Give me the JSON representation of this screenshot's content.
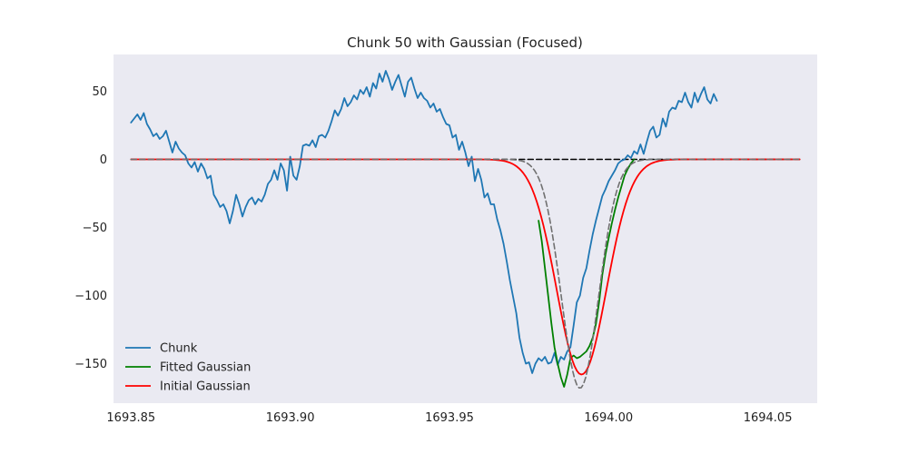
{
  "chart_data": {
    "type": "line",
    "title": "Chunk 50 with Gaussian (Focused)",
    "xlabel": "",
    "ylabel": "",
    "xlim": [
      1693.8445,
      1694.0655
    ],
    "ylim": [
      -179,
      77
    ],
    "x_ticks": [
      {
        "value": 1693.85,
        "label": "1693.85"
      },
      {
        "value": 1693.9,
        "label": "1693.90"
      },
      {
        "value": 1693.95,
        "label": "1693.95"
      },
      {
        "value": 1694.0,
        "label": "1694.00"
      },
      {
        "value": 1694.05,
        "label": "1694.05"
      }
    ],
    "y_ticks": [
      {
        "value": 50,
        "label": "50"
      },
      {
        "value": 0,
        "label": "0"
      },
      {
        "value": -50,
        "label": "−50"
      },
      {
        "value": -100,
        "label": "−100"
      },
      {
        "value": -150,
        "label": "−150"
      }
    ],
    "grid": false,
    "background": "#eaeaf2",
    "legend": {
      "position": "lower-left",
      "entries": [
        {
          "label": "Chunk",
          "color": "#1f77b4",
          "style": "solid"
        },
        {
          "label": "Fitted Gaussian",
          "color": "#008000",
          "style": "solid"
        },
        {
          "label": "Initial Gaussian",
          "color": "#ff0000",
          "style": "solid"
        }
      ]
    },
    "series": [
      {
        "name": "Chunk",
        "color": "#1f77b4",
        "style": "solid",
        "points": [
          [
            1693.85,
            27
          ],
          [
            1693.851,
            30
          ],
          [
            1693.852,
            33
          ],
          [
            1693.853,
            29
          ],
          [
            1693.854,
            34
          ],
          [
            1693.855,
            26
          ],
          [
            1693.856,
            22
          ],
          [
            1693.857,
            17
          ],
          [
            1693.858,
            19
          ],
          [
            1693.859,
            15
          ],
          [
            1693.86,
            17
          ],
          [
            1693.861,
            21
          ],
          [
            1693.862,
            13
          ],
          [
            1693.863,
            5
          ],
          [
            1693.864,
            13
          ],
          [
            1693.865,
            8
          ],
          [
            1693.866,
            5
          ],
          [
            1693.867,
            3
          ],
          [
            1693.868,
            -3
          ],
          [
            1693.869,
            -6
          ],
          [
            1693.87,
            -2
          ],
          [
            1693.871,
            -9
          ],
          [
            1693.872,
            -3
          ],
          [
            1693.873,
            -7
          ],
          [
            1693.874,
            -14
          ],
          [
            1693.875,
            -12
          ],
          [
            1693.876,
            -26
          ],
          [
            1693.877,
            -30
          ],
          [
            1693.878,
            -35
          ],
          [
            1693.879,
            -33
          ],
          [
            1693.88,
            -38
          ],
          [
            1693.881,
            -47
          ],
          [
            1693.882,
            -38
          ],
          [
            1693.883,
            -26
          ],
          [
            1693.884,
            -33
          ],
          [
            1693.885,
            -42
          ],
          [
            1693.886,
            -35
          ],
          [
            1693.887,
            -30
          ],
          [
            1693.888,
            -28
          ],
          [
            1693.889,
            -33
          ],
          [
            1693.89,
            -29
          ],
          [
            1693.891,
            -31
          ],
          [
            1693.892,
            -26
          ],
          [
            1693.893,
            -18
          ],
          [
            1693.894,
            -15
          ],
          [
            1693.895,
            -8
          ],
          [
            1693.896,
            -15
          ],
          [
            1693.897,
            -3
          ],
          [
            1693.898,
            -8
          ],
          [
            1693.899,
            -23
          ],
          [
            1693.9,
            2
          ],
          [
            1693.901,
            -12
          ],
          [
            1693.902,
            -15
          ],
          [
            1693.903,
            -5
          ],
          [
            1693.904,
            10
          ],
          [
            1693.905,
            11
          ],
          [
            1693.906,
            10
          ],
          [
            1693.907,
            14
          ],
          [
            1693.908,
            9
          ],
          [
            1693.909,
            17
          ],
          [
            1693.91,
            18
          ],
          [
            1693.911,
            16
          ],
          [
            1693.912,
            21
          ],
          [
            1693.913,
            28
          ],
          [
            1693.914,
            36
          ],
          [
            1693.915,
            32
          ],
          [
            1693.916,
            37
          ],
          [
            1693.917,
            45
          ],
          [
            1693.918,
            39
          ],
          [
            1693.919,
            42
          ],
          [
            1693.92,
            47
          ],
          [
            1693.921,
            44
          ],
          [
            1693.922,
            51
          ],
          [
            1693.923,
            48
          ],
          [
            1693.924,
            53
          ],
          [
            1693.925,
            46
          ],
          [
            1693.926,
            56
          ],
          [
            1693.927,
            52
          ],
          [
            1693.928,
            63
          ],
          [
            1693.929,
            57
          ],
          [
            1693.93,
            65
          ],
          [
            1693.931,
            59
          ],
          [
            1693.932,
            51
          ],
          [
            1693.933,
            57
          ],
          [
            1693.934,
            62
          ],
          [
            1693.935,
            54
          ],
          [
            1693.936,
            46
          ],
          [
            1693.937,
            57
          ],
          [
            1693.938,
            60
          ],
          [
            1693.939,
            52
          ],
          [
            1693.94,
            45
          ],
          [
            1693.941,
            49
          ],
          [
            1693.942,
            45
          ],
          [
            1693.943,
            43
          ],
          [
            1693.944,
            38
          ],
          [
            1693.945,
            41
          ],
          [
            1693.946,
            35
          ],
          [
            1693.947,
            37
          ],
          [
            1693.948,
            31
          ],
          [
            1693.949,
            26
          ],
          [
            1693.95,
            25
          ],
          [
            1693.951,
            16
          ],
          [
            1693.952,
            18
          ],
          [
            1693.953,
            7
          ],
          [
            1693.954,
            13
          ],
          [
            1693.955,
            5
          ],
          [
            1693.956,
            -5
          ],
          [
            1693.957,
            2
          ],
          [
            1693.958,
            -16
          ],
          [
            1693.959,
            -7
          ],
          [
            1693.96,
            -15
          ],
          [
            1693.961,
            -28
          ],
          [
            1693.962,
            -25
          ],
          [
            1693.963,
            -33
          ],
          [
            1693.964,
            -33
          ],
          [
            1693.965,
            -44
          ],
          [
            1693.966,
            -52
          ],
          [
            1693.967,
            -62
          ],
          [
            1693.968,
            -75
          ],
          [
            1693.969,
            -89
          ],
          [
            1693.97,
            -101
          ],
          [
            1693.971,
            -113
          ],
          [
            1693.972,
            -131
          ],
          [
            1693.973,
            -142
          ],
          [
            1693.974,
            -150
          ],
          [
            1693.975,
            -149
          ],
          [
            1693.976,
            -157
          ],
          [
            1693.977,
            -150
          ],
          [
            1693.978,
            -146
          ],
          [
            1693.979,
            -148
          ],
          [
            1693.98,
            -145
          ],
          [
            1693.981,
            -150
          ],
          [
            1693.982,
            -149
          ],
          [
            1693.983,
            -142
          ],
          [
            1693.984,
            -151
          ],
          [
            1693.985,
            -145
          ],
          [
            1693.986,
            -147
          ],
          [
            1693.987,
            -141
          ],
          [
            1693.988,
            -138
          ],
          [
            1693.989,
            -122
          ],
          [
            1693.99,
            -105
          ],
          [
            1693.991,
            -100
          ],
          [
            1693.992,
            -87
          ],
          [
            1693.993,
            -80
          ],
          [
            1693.994,
            -67
          ],
          [
            1693.995,
            -55
          ],
          [
            1693.996,
            -45
          ],
          [
            1693.997,
            -36
          ],
          [
            1693.998,
            -27
          ],
          [
            1693.999,
            -22
          ],
          [
            1694.0,
            -16
          ],
          [
            1694.001,
            -12
          ],
          [
            1694.002,
            -8
          ],
          [
            1694.003,
            -3
          ],
          [
            1694.004,
            -1
          ],
          [
            1694.005,
            0
          ],
          [
            1694.006,
            3
          ],
          [
            1694.007,
            1
          ],
          [
            1694.008,
            6
          ],
          [
            1694.009,
            4
          ],
          [
            1694.01,
            11
          ],
          [
            1694.011,
            4
          ],
          [
            1694.012,
            13
          ],
          [
            1694.013,
            21
          ],
          [
            1694.014,
            24
          ],
          [
            1694.015,
            16
          ],
          [
            1694.016,
            18
          ],
          [
            1694.017,
            30
          ],
          [
            1694.018,
            24
          ],
          [
            1694.019,
            35
          ],
          [
            1694.02,
            38
          ],
          [
            1694.021,
            37
          ],
          [
            1694.022,
            43
          ],
          [
            1694.023,
            42
          ],
          [
            1694.024,
            49
          ],
          [
            1694.025,
            42
          ],
          [
            1694.026,
            38
          ],
          [
            1694.027,
            49
          ],
          [
            1694.028,
            42
          ],
          [
            1694.029,
            48
          ],
          [
            1694.03,
            53
          ],
          [
            1694.031,
            44
          ],
          [
            1694.032,
            41
          ],
          [
            1694.033,
            48
          ],
          [
            1694.034,
            43
          ]
        ]
      },
      {
        "name": "Fitted Gaussian",
        "color": "#008000",
        "style": "solid",
        "points": [
          [
            1693.978,
            -45
          ],
          [
            1693.979,
            -60
          ],
          [
            1693.98,
            -80
          ],
          [
            1693.981,
            -100
          ],
          [
            1693.982,
            -120
          ],
          [
            1693.983,
            -138
          ],
          [
            1693.984,
            -150
          ],
          [
            1693.985,
            -160
          ],
          [
            1693.986,
            -167
          ],
          [
            1693.987,
            -158
          ],
          [
            1693.988,
            -146
          ],
          [
            1693.989,
            -144
          ],
          [
            1693.99,
            -146
          ],
          [
            1693.991,
            -145
          ],
          [
            1693.992,
            -143
          ],
          [
            1693.993,
            -141
          ],
          [
            1693.994,
            -137
          ],
          [
            1693.995,
            -131
          ],
          [
            1693.996,
            -121
          ],
          [
            1693.997,
            -105
          ],
          [
            1693.998,
            -85
          ],
          [
            1693.999,
            -70
          ],
          [
            1694.0,
            -58
          ],
          [
            1694.001,
            -47
          ],
          [
            1694.002,
            -37
          ],
          [
            1694.003,
            -28
          ],
          [
            1694.004,
            -20
          ],
          [
            1694.005,
            -12
          ],
          [
            1694.006,
            -7
          ],
          [
            1694.007,
            -3
          ],
          [
            1694.008,
            0
          ]
        ]
      },
      {
        "name": "Initial Gaussian",
        "color": "#ff0000",
        "style": "solid",
        "gaussian": {
          "amplitude": -158,
          "center": 1693.9915,
          "sigma": 0.0078
        },
        "x_range": [
          1693.85,
          1694.06
        ]
      },
      {
        "name": "",
        "color": "#707070",
        "style": "dashed",
        "gaussian": {
          "amplitude": -168,
          "center": 1693.991,
          "sigma": 0.0058
        },
        "x_range": [
          1693.85,
          1694.06
        ]
      },
      {
        "name": "",
        "color": "#000000",
        "style": "dashed",
        "segment": [
          [
            1693.85,
            0
          ],
          [
            1694.06,
            0
          ]
        ]
      }
    ]
  }
}
